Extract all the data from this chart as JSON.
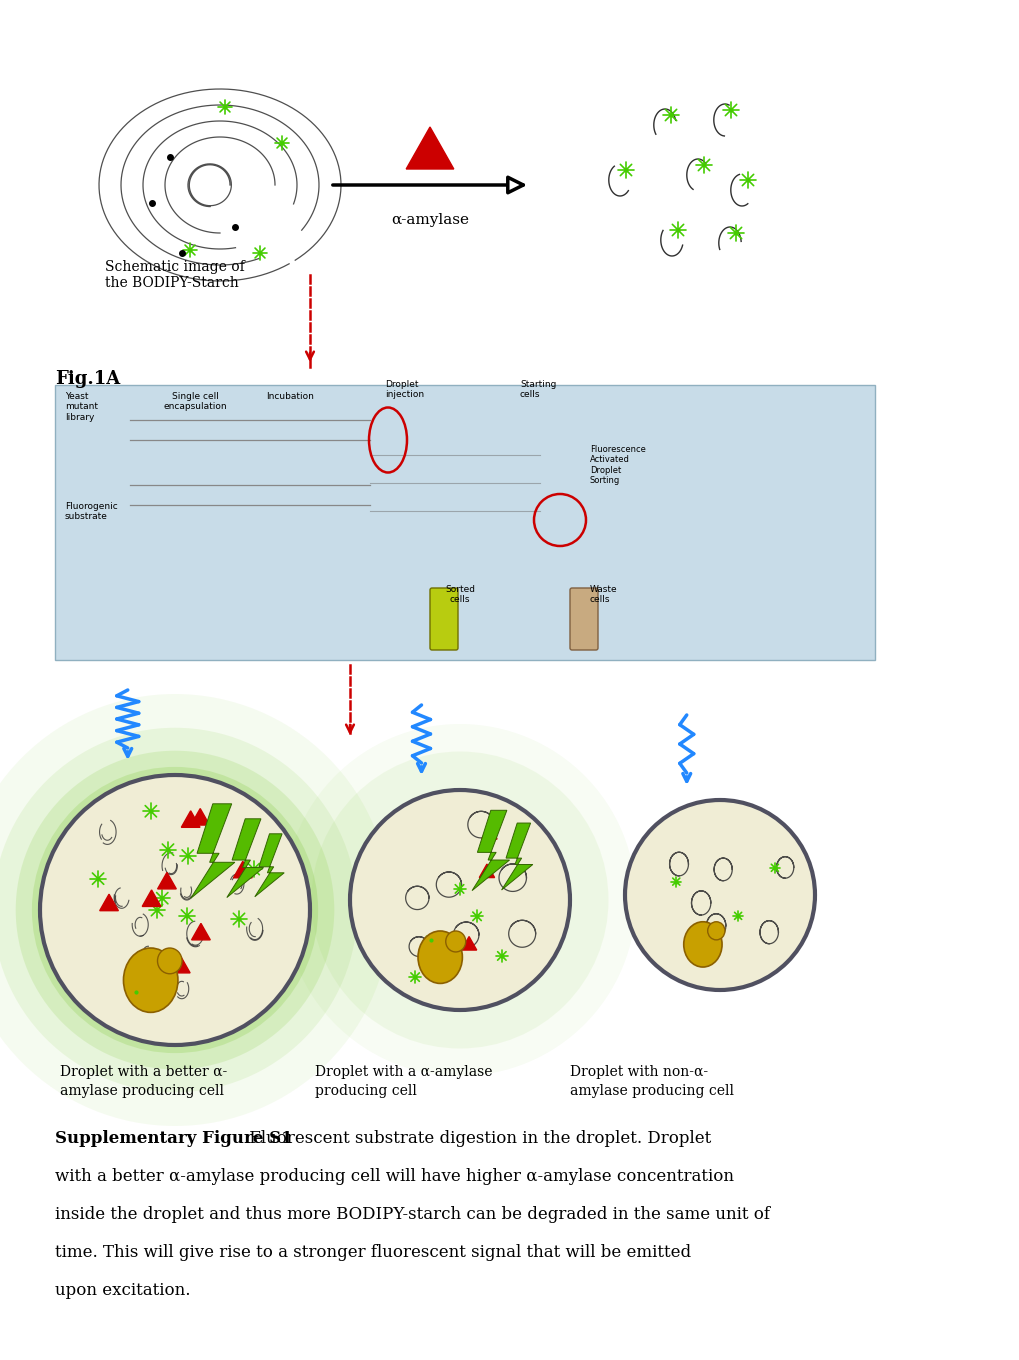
{
  "fig_width": 10.2,
  "fig_height": 13.6,
  "dpi": 100,
  "background_color": "#ffffff",
  "caption_bold": "Supplementary Figure S1",
  "caption_normal": " Fluorescent substrate digestion in the droplet. Droplet with a better α-amylase producing cell will have higher α-amylase concentration inside the droplet and thus more BODIPY-starch can be degraded in the same unit of time. This will give rise to a stronger fluorescent signal that will be emitted upon excitation.",
  "label1": "Droplet with a better α-\namylase producing cell",
  "label2": "Droplet with a α-amylase\nproducing cell",
  "label3": "Droplet with non-α-\namylase producing cell",
  "schematic_label": "Schematic image of\nthe BODIPY-Starch",
  "fig1a_label": "Fig.1A",
  "alpha_amylase_label": "α-amylase",
  "bodipy_green": "#44cc00",
  "red_color": "#cc0000",
  "blue_color": "#2288ff",
  "dark_color": "#303030",
  "yeast_color": "#c8a000",
  "droplet_fill": "#f0edd5",
  "droplet_border": "#505060",
  "fig1a_bg": "#c8dce8",
  "lightning_color": "#55bb00"
}
